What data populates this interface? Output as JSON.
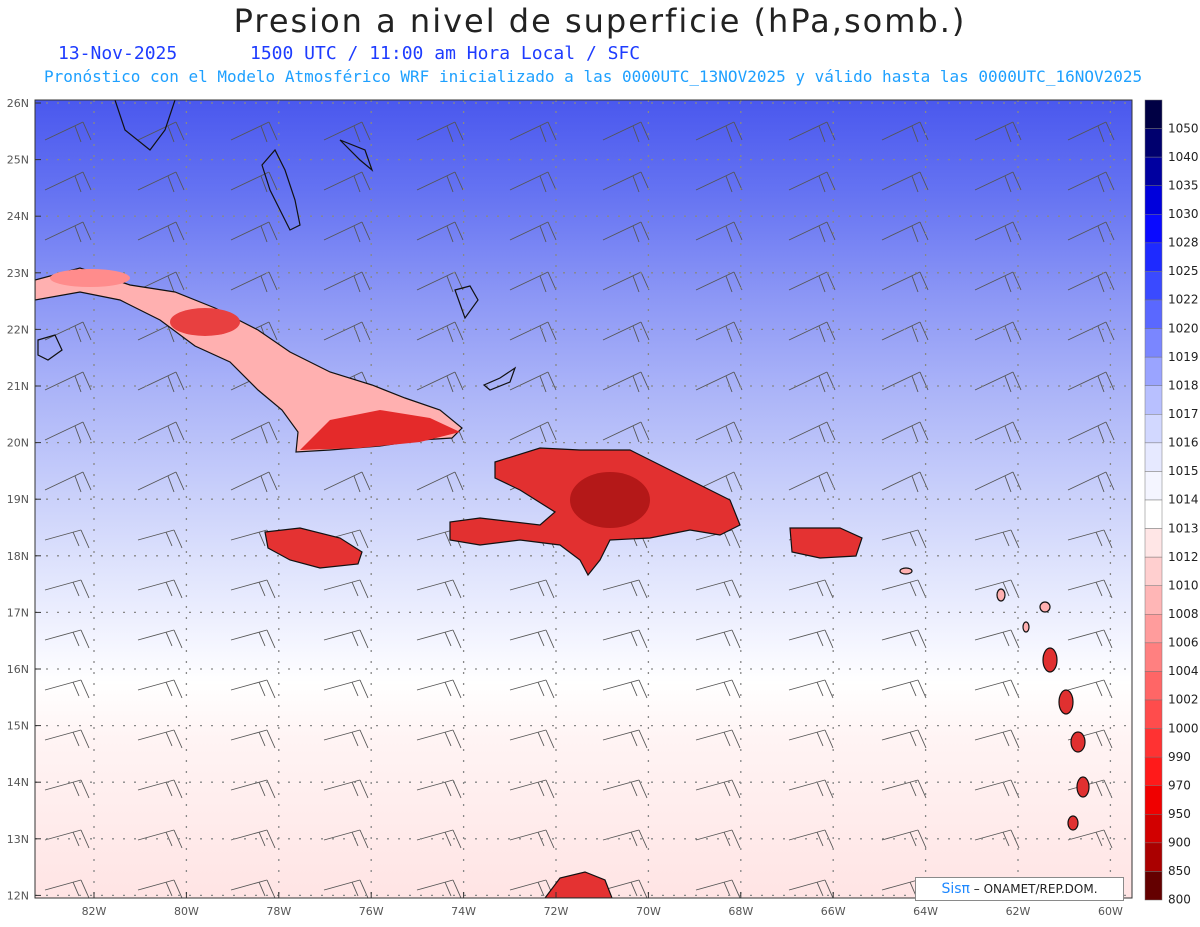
{
  "title": "Presion a nivel de superficie (hPa,somb.)",
  "date": "13-Nov-2025",
  "valid_time": "1500 UTC / 11:00 am Hora Local / SFC",
  "description": "Pronóstico con el Modelo Atmosférico WRF inicializado a las 0000UTC_13NOV2025 y válido hasta las  0000UTC_16NOV2025",
  "credit": {
    "sis": "Sisπ",
    "org": "– ONAMET/REP.DOM."
  },
  "lat_labels": [
    "26N",
    "25N",
    "24N",
    "23N",
    "22N",
    "21N",
    "20N",
    "19N",
    "18N",
    "17N",
    "16N",
    "15N",
    "14N",
    "13N",
    "12N"
  ],
  "lon_labels": [
    "82W",
    "80W",
    "78W",
    "76W",
    "74W",
    "72W",
    "70W",
    "68W",
    "66W",
    "64W",
    "62W",
    "60W"
  ],
  "colorbar": {
    "labels": [
      "1050",
      "1040",
      "1035",
      "1030",
      "1028",
      "1025",
      "1022",
      "1020",
      "1019",
      "1018",
      "1017",
      "1016",
      "1015",
      "1014",
      "1013",
      "1012",
      "1010",
      "1008",
      "1006",
      "1004",
      "1002",
      "1000",
      "990",
      "970",
      "950",
      "900",
      "850",
      "800"
    ],
    "colors": [
      "#000044",
      "#00006e",
      "#0000a0",
      "#0000dc",
      "#0a0aff",
      "#1e2aff",
      "#3a4aff",
      "#5a68ff",
      "#7a86ff",
      "#9aa4ff",
      "#b8c0ff",
      "#d2d8ff",
      "#e6e9ff",
      "#f4f5ff",
      "#ffffff",
      "#ffe6e6",
      "#ffcfcf",
      "#ffb6b6",
      "#ff9c9c",
      "#ff8080",
      "#ff6666",
      "#ff4c4c",
      "#ff3232",
      "#ff1a1a",
      "#f00000",
      "#d20000",
      "#aa0000",
      "#640000"
    ]
  }
}
